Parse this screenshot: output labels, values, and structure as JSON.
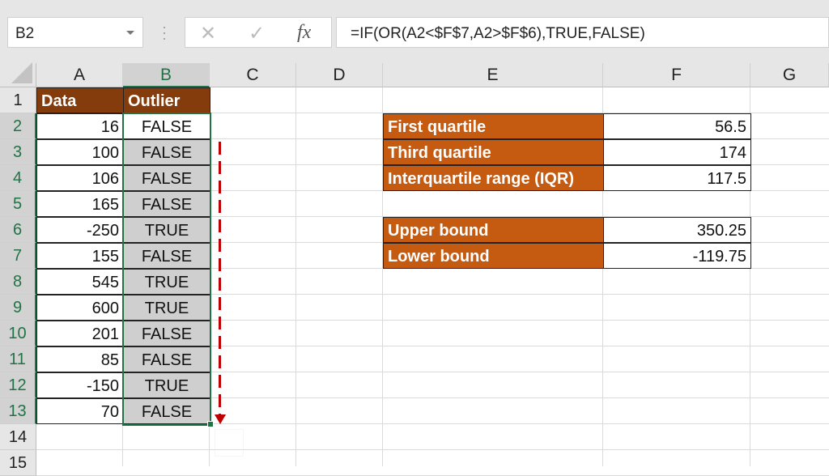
{
  "name_box": "B2",
  "formula": "=IF(OR(A2<$F$7,A2>$F$6),TRUE,FALSE)",
  "icons": {
    "cancel": "✕",
    "enter": "✓",
    "fx": "fx"
  },
  "columns": [
    "A",
    "B",
    "C",
    "D",
    "E",
    "F",
    "G"
  ],
  "rows": [
    "1",
    "2",
    "3",
    "4",
    "5",
    "6",
    "7",
    "8",
    "9",
    "10",
    "11",
    "12",
    "13",
    "14",
    "15"
  ],
  "table": {
    "headers": [
      "Data",
      "Outlier"
    ],
    "data": [
      "16",
      "100",
      "106",
      "165",
      "-250",
      "155",
      "545",
      "600",
      "201",
      "85",
      "-150",
      "70"
    ],
    "outlier": [
      "FALSE",
      "FALSE",
      "FALSE",
      "FALSE",
      "TRUE",
      "FALSE",
      "TRUE",
      "TRUE",
      "FALSE",
      "FALSE",
      "TRUE",
      "FALSE"
    ]
  },
  "stats": [
    {
      "label": "First quartile",
      "value": "56.5"
    },
    {
      "label": "Third quartile",
      "value": "174"
    },
    {
      "label": "Interquartile range (IQR)",
      "value": "117.5"
    },
    {
      "label": "Upper bound",
      "value": "350.25"
    },
    {
      "label": "Lower bound",
      "value": "-119.75"
    }
  ],
  "colors": {
    "header_fill": "#843c0c",
    "label_fill": "#c55a11",
    "selection": "#217346",
    "arrow": "#c00000"
  }
}
